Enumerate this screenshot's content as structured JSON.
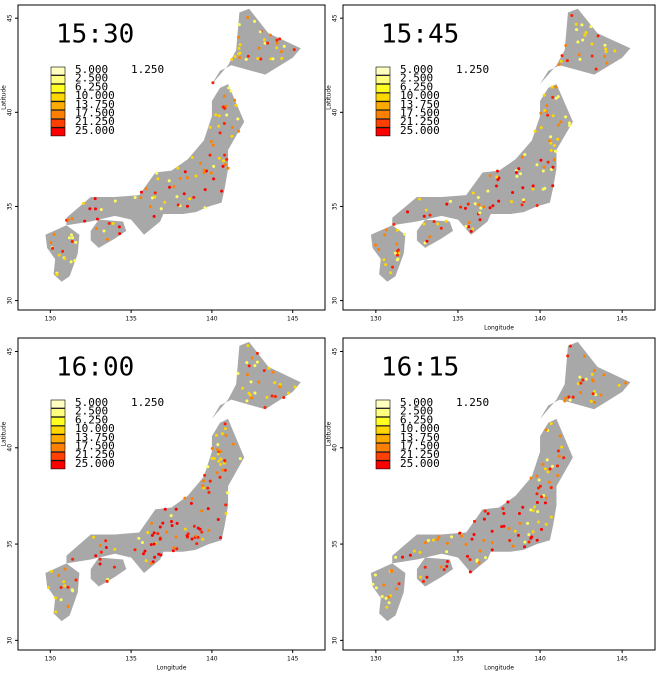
{
  "panels": [
    {
      "title": "15:30",
      "ylabel": "Latitude"
    },
    {
      "title": "15:45",
      "xlabel": "Longitude",
      "ylabel": "Latitude"
    },
    {
      "title": "16:00",
      "xlabel": "Longitude",
      "ylabel": "Latitude"
    },
    {
      "title": "16:15",
      "xlabel": "Longitude",
      "ylabel": "Latitude"
    }
  ],
  "legend": {
    "extra_label": "1.250",
    "entries": [
      {
        "label": "5.000",
        "color": "#ffffc0"
      },
      {
        "label": "2.500",
        "color": "#ffff80"
      },
      {
        "label": "6.250",
        "color": "#ffff20"
      },
      {
        "label": "10.000",
        "color": "#ffd700"
      },
      {
        "label": "13.750",
        "color": "#ffaa00"
      },
      {
        "label": "17.500",
        "color": "#ff7f00"
      },
      {
        "label": "21.250",
        "color": "#ff4000"
      },
      {
        "label": "25.000",
        "color": "#ff0000"
      }
    ]
  },
  "xlim": [
    128,
    147
  ],
  "ylim": [
    29.5,
    45.7
  ],
  "xticks": [
    130,
    135,
    140,
    145
  ],
  "yticks": [
    30,
    35,
    40,
    45
  ]
}
